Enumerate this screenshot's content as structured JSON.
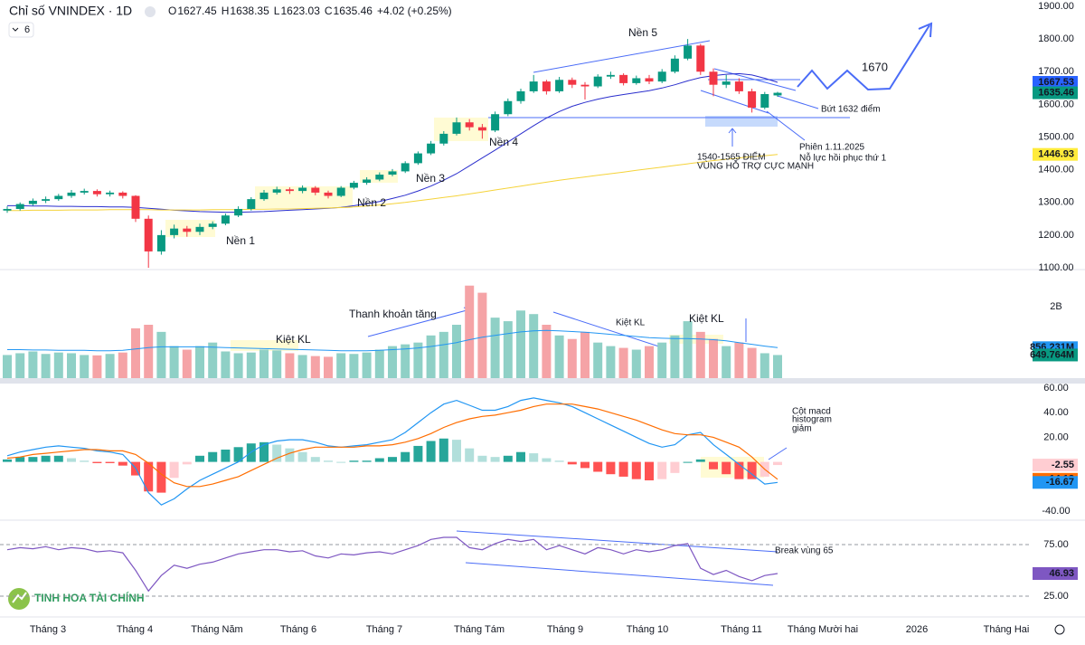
{
  "header": {
    "title": "Chỉ số VNINDEX · 1D",
    "ohlc_letters": [
      "O",
      "H",
      "L",
      "C"
    ],
    "change": "+4.02 (+0.25%)",
    "indicator_count": 6,
    "logo_text": "TINH HOA TÀI CHÍNH"
  },
  "chart_data": [
    {
      "type": "candlestick",
      "ylim": [
        1100,
        1900
      ],
      "yticks": [
        {
          "value": 1100,
          "label": "1100.00"
        },
        {
          "value": 1200,
          "label": "1200.00"
        },
        {
          "value": 1300,
          "label": "1300.00"
        },
        {
          "value": 1400,
          "label": "1400.00"
        },
        {
          "value": 1500,
          "label": "1500.00"
        },
        {
          "value": 1600,
          "label": "1600.00"
        },
        {
          "value": 1700,
          "label": "1700.00"
        },
        {
          "value": 1800,
          "label": "1800.00"
        },
        {
          "value": 1900,
          "label": "1900.00"
        }
      ],
      "grid": false,
      "up_color": "#089981",
      "down_color": "#f23645",
      "x_axis_labels": [
        "Tháng 3",
        "Tháng 4",
        "Tháng Năm",
        "Tháng 6",
        "Tháng 7",
        "Tháng Tám",
        "Tháng 9",
        "Tháng 10",
        "Tháng 11",
        "Tháng Mười hai",
        "2026",
        "Tháng Hai"
      ],
      "open": [
        1275,
        1280,
        1295,
        1305,
        1310,
        1320,
        1330,
        1335,
        1325,
        1330,
        1320,
        1250,
        1150,
        1200,
        1220,
        1210,
        1225,
        1235,
        1260,
        1280,
        1310,
        1330,
        1340,
        1335,
        1345,
        1330,
        1320,
        1345,
        1360,
        1370,
        1385,
        1395,
        1420,
        1450,
        1480,
        1510,
        1545,
        1530,
        1520,
        1570,
        1610,
        1640,
        1670,
        1640,
        1675,
        1660,
        1655,
        1685,
        1690,
        1665,
        1680,
        1670,
        1700,
        1740,
        1780,
        1700,
        1660,
        1670,
        1640,
        1590,
        1627.45
      ],
      "high": [
        1288,
        1300,
        1312,
        1318,
        1326,
        1338,
        1342,
        1340,
        1336,
        1334,
        1322,
        1260,
        1215,
        1232,
        1228,
        1235,
        1242,
        1266,
        1288,
        1316,
        1338,
        1348,
        1346,
        1352,
        1350,
        1336,
        1350,
        1366,
        1377,
        1392,
        1402,
        1426,
        1456,
        1488,
        1518,
        1560,
        1555,
        1540,
        1578,
        1618,
        1648,
        1690,
        1675,
        1684,
        1682,
        1668,
        1692,
        1700,
        1695,
        1688,
        1690,
        1708,
        1750,
        1800,
        1785,
        1710,
        1690,
        1680,
        1648,
        1638,
        1638.35
      ],
      "low": [
        1268,
        1275,
        1290,
        1298,
        1305,
        1314,
        1324,
        1318,
        1318,
        1312,
        1240,
        1100,
        1140,
        1190,
        1195,
        1200,
        1218,
        1230,
        1255,
        1275,
        1305,
        1324,
        1326,
        1328,
        1322,
        1312,
        1316,
        1340,
        1354,
        1365,
        1380,
        1390,
        1415,
        1445,
        1474,
        1505,
        1520,
        1495,
        1515,
        1564,
        1602,
        1635,
        1630,
        1635,
        1650,
        1615,
        1650,
        1678,
        1658,
        1660,
        1662,
        1665,
        1695,
        1735,
        1690,
        1625,
        1650,
        1632,
        1575,
        1585,
        1623.03
      ],
      "close": [
        1280,
        1295,
        1305,
        1310,
        1320,
        1330,
        1335,
        1325,
        1330,
        1320,
        1250,
        1150,
        1200,
        1220,
        1210,
        1225,
        1235,
        1260,
        1280,
        1310,
        1330,
        1340,
        1335,
        1345,
        1330,
        1320,
        1345,
        1360,
        1370,
        1385,
        1395,
        1420,
        1450,
        1480,
        1510,
        1545,
        1530,
        1520,
        1570,
        1610,
        1640,
        1670,
        1640,
        1675,
        1660,
        1655,
        1685,
        1690,
        1665,
        1680,
        1670,
        1700,
        1740,
        1780,
        1700,
        1660,
        1670,
        1640,
        1590,
        1631.44,
        1635.46
      ],
      "ma_lines": [
        {
          "color": "#2a2ecd",
          "label_color": "#2962ff",
          "values": [
            1290,
            1290,
            1289,
            1289,
            1288,
            1288,
            1287,
            1287,
            1286,
            1286,
            1285,
            1282,
            1279,
            1276,
            1274,
            1272,
            1271,
            1270,
            1270,
            1271,
            1272,
            1274,
            1276,
            1278,
            1280,
            1282,
            1285,
            1290,
            1296,
            1303,
            1312,
            1322,
            1335,
            1350,
            1368,
            1388,
            1412,
            1436,
            1460,
            1485,
            1510,
            1535,
            1558,
            1578,
            1594,
            1606,
            1616,
            1624,
            1630,
            1636,
            1642,
            1650,
            1660,
            1672,
            1682,
            1688,
            1692,
            1694,
            1690,
            1680,
            1667.53
          ]
        },
        {
          "color": "#f5d33a",
          "label_color": "#ffeb3b",
          "values": [
            1275,
            1275,
            1276,
            1276,
            1276,
            1277,
            1277,
            1277,
            1278,
            1278,
            1278,
            1278,
            1277,
            1277,
            1277,
            1277,
            1278,
            1278,
            1278,
            1279,
            1279,
            1280,
            1280,
            1281,
            1282,
            1283,
            1284,
            1286,
            1289,
            1292,
            1296,
            1300,
            1305,
            1310,
            1315,
            1320,
            1326,
            1332,
            1338,
            1344,
            1350,
            1356,
            1362,
            1368,
            1373,
            1378,
            1383,
            1388,
            1393,
            1398,
            1403,
            1408,
            1413,
            1418,
            1423,
            1428,
            1432,
            1436,
            1440,
            1443,
            1446.93
          ]
        }
      ],
      "annotations": [
        {
          "text": "Nền 1",
          "color": "#131722"
        },
        {
          "text": "Nền 2",
          "color": "#131722"
        },
        {
          "text": "Nền 3",
          "color": "#131722"
        },
        {
          "text": "Nền 4",
          "color": "#131722"
        },
        {
          "text": "Nền 5",
          "color": "#131722"
        },
        {
          "text": "1670",
          "color": "#f23645"
        },
        {
          "text": "Bứt 1632 điểm",
          "color": "#2962ff"
        },
        {
          "text": "Phiên 1.11.2025",
          "color": "#2962ff"
        },
        {
          "text": "Nỗ lực hồi phục thứ 1",
          "color": "#2962ff"
        },
        {
          "text": "1540-1565 ĐIỂM",
          "color": "#2962ff"
        },
        {
          "text": "VÙNG HỖ TRỢ CỰC MẠNH",
          "color": "#2962ff"
        }
      ]
    },
    {
      "type": "bar",
      "ylim": [
        0,
        3000
      ],
      "yticks": [
        {
          "value": 2000,
          "label": "2B"
        }
      ],
      "up_color": "#8fd0c6",
      "down_color": "#f5a3a6",
      "values": [
        650,
        700,
        750,
        680,
        720,
        700,
        650,
        640,
        680,
        720,
        1400,
        1500,
        1300,
        900,
        800,
        900,
        1000,
        750,
        700,
        720,
        800,
        780,
        700,
        650,
        620,
        600,
        700,
        680,
        720,
        800,
        900,
        950,
        1000,
        1200,
        1300,
        1500,
        2600,
        2400,
        1700,
        1600,
        1900,
        1800,
        1500,
        1200,
        1100,
        1300,
        1000,
        900,
        850,
        800,
        900,
        1000,
        1200,
        1600,
        1300,
        1100,
        900,
        1000,
        850,
        700,
        649.764
      ],
      "last_value_label": "649.764M",
      "label_color": "#089981",
      "ma": {
        "color": "#2196f3",
        "values": [
          800,
          800,
          790,
          790,
          780,
          780,
          780,
          770,
          770,
          780,
          820,
          860,
          880,
          880,
          880,
          880,
          870,
          860,
          850,
          840,
          830,
          820,
          810,
          800,
          790,
          780,
          770,
          770,
          770,
          780,
          800,
          820,
          850,
          890,
          940,
          1000,
          1080,
          1150,
          1200,
          1250,
          1300,
          1330,
          1340,
          1330,
          1310,
          1290,
          1260,
          1230,
          1200,
          1170,
          1140,
          1120,
          1110,
          1110,
          1100,
          1080,
          1050,
          1000,
          950,
          900,
          856.231
        ],
        "last_value_label": "856.231M"
      },
      "annotations": [
        {
          "text": "Thanh khoản tăng",
          "color": "#131722"
        },
        {
          "text": "Kiệt KL",
          "color": "#131722"
        },
        {
          "text": "Kiệt KL",
          "color": "#2962ff"
        },
        {
          "text": "Kiệt KL",
          "color": "#f23645"
        }
      ]
    },
    {
      "type": "macd",
      "ylim": [
        -40,
        60
      ],
      "yticks": [
        {
          "value": -40,
          "label": "-40.00"
        },
        {
          "value": 20,
          "label": "20.00"
        },
        {
          "value": 40,
          "label": "40.00"
        },
        {
          "value": 60,
          "label": "60.00"
        }
      ],
      "histogram": {
        "colors": [
          "#26a69a",
          "#b2dfdb",
          "#ff5252",
          "#ffcdd2"
        ],
        "label_color": "#ffcdd2",
        "values": [
          2,
          4,
          4,
          5,
          5,
          3,
          1,
          -1,
          -1,
          -3,
          -11,
          -24,
          -25,
          -13,
          -2,
          5,
          8,
          10,
          12,
          15,
          16,
          14,
          11,
          8,
          4,
          1,
          0,
          1,
          1,
          3,
          4,
          8,
          13,
          17,
          19,
          18,
          11,
          5,
          4,
          5,
          8,
          7,
          3,
          1,
          -2,
          -5,
          -8,
          -10,
          -12,
          -14,
          -15,
          -14,
          -9,
          0,
          2,
          -6,
          -10,
          -14,
          -14,
          -12,
          -2.55
        ]
      },
      "series": [
        {
          "color": "#2196f3",
          "values": [
            5,
            8,
            10,
            12,
            13,
            12,
            11,
            9,
            8,
            6,
            -5,
            -25,
            -35,
            -30,
            -22,
            -15,
            -10,
            -5,
            0,
            8,
            14,
            17,
            18,
            18,
            16,
            13,
            12,
            13,
            14,
            16,
            18,
            24,
            32,
            40,
            47,
            50,
            46,
            42,
            42,
            45,
            50,
            52,
            50,
            48,
            45,
            40,
            35,
            30,
            25,
            20,
            15,
            12,
            14,
            22,
            24,
            14,
            6,
            -2,
            -10,
            -18,
            -16.67
          ]
        },
        {
          "color": "#ff6d00",
          "values": [
            3,
            4,
            6,
            7,
            8,
            9,
            10,
            10,
            9,
            9,
            6,
            -1,
            -10,
            -17,
            -20,
            -20,
            -18,
            -15,
            -12,
            -7,
            -2,
            3,
            7,
            10,
            12,
            12,
            12,
            12,
            13,
            13,
            14,
            16,
            19,
            23,
            28,
            32,
            35,
            37,
            38,
            40,
            42,
            45,
            47,
            47,
            47,
            45,
            43,
            40,
            37,
            34,
            30,
            26,
            23,
            22,
            22,
            20,
            16,
            12,
            4,
            -6,
            -14.12
          ]
        }
      ],
      "annotations": [
        {
          "text": "Cột macd",
          "color": "#2962ff"
        },
        {
          "text": "histogram",
          "color": "#2962ff"
        },
        {
          "text": "giảm",
          "color": "#2962ff"
        }
      ]
    },
    {
      "type": "line",
      "ylim": [
        5,
        95
      ],
      "yticks": [
        {
          "value": 25,
          "label": "25.00"
        },
        {
          "value": 75,
          "label": "75.00"
        }
      ],
      "grid": true,
      "series": [
        {
          "color": "#7e57c2",
          "values": [
            70,
            72,
            71,
            73,
            70,
            72,
            71,
            68,
            69,
            67,
            50,
            30,
            45,
            55,
            52,
            56,
            58,
            62,
            66,
            68,
            70,
            70,
            68,
            69,
            64,
            62,
            66,
            65,
            67,
            68,
            66,
            70,
            74,
            80,
            82,
            82,
            72,
            70,
            76,
            80,
            78,
            80,
            70,
            74,
            70,
            66,
            72,
            70,
            66,
            70,
            68,
            70,
            74,
            76,
            52,
            46,
            50,
            44,
            40,
            45,
            46.93
          ]
        }
      ],
      "annotations": [
        {
          "text": "Break vùng 65",
          "color": "#2962ff"
        }
      ]
    }
  ]
}
